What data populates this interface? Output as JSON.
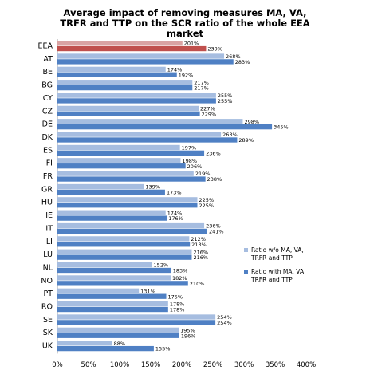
{
  "chart_data": {
    "type": "bar",
    "orientation": "horizontal",
    "title_lines": [
      "Average impact of removing measures MA, VA,",
      "TRFR and TTP on the SCR ratio of the whole EEA",
      "market"
    ],
    "categories": [
      "EEA",
      "AT",
      "BE",
      "BG",
      "CY",
      "CZ",
      "DE",
      "DK",
      "ES",
      "FI",
      "FR",
      "GR",
      "HU",
      "IE",
      "IT",
      "LI",
      "LU",
      "NL",
      "NO",
      "PT",
      "RO",
      "SE",
      "SK",
      "UK"
    ],
    "series": [
      {
        "name": "Ratio w/o MA, VA, TRFR and TTP",
        "color": "#a6bde0",
        "labels": [
          "201%",
          "268%",
          "174%",
          "217%",
          "255%",
          "227%",
          "298%",
          "263%",
          "197%",
          "198%",
          "219%",
          "139%",
          "225%",
          "174%",
          "236%",
          "212%",
          "216%",
          "152%",
          "182%",
          "131%",
          "178%",
          "254%",
          "195%",
          "88%"
        ],
        "values": [
          201,
          268,
          174,
          217,
          255,
          227,
          298,
          263,
          197,
          198,
          219,
          139,
          225,
          174,
          236,
          212,
          216,
          152,
          182,
          131,
          178,
          254,
          195,
          88
        ]
      },
      {
        "name": "Ratio with MA, VA, TRFR and TTP",
        "color": "#4f80c4",
        "labels": [
          "239%",
          "283%",
          "192%",
          "217%",
          "255%",
          "229%",
          "345%",
          "289%",
          "236%",
          "206%",
          "238%",
          "173%",
          "225%",
          "176%",
          "241%",
          "213%",
          "216%",
          "183%",
          "210%",
          "175%",
          "178%",
          "254%",
          "196%",
          "155%"
        ],
        "values": [
          239,
          283,
          192,
          217,
          255,
          229,
          345,
          289,
          236,
          206,
          238,
          173,
          225,
          176,
          241,
          213,
          216,
          183,
          210,
          175,
          178,
          254,
          196,
          155
        ]
      }
    ],
    "highlight": {
      "category": "EEA",
      "colors": [
        "#d9a3a3",
        "#c0504d"
      ]
    },
    "x_ticks": [
      "0%",
      "50%",
      "100%",
      "150%",
      "200%",
      "250%",
      "300%",
      "350%",
      "400%"
    ],
    "xlim": [
      0,
      400
    ],
    "grid": false,
    "legend_position": "right"
  }
}
